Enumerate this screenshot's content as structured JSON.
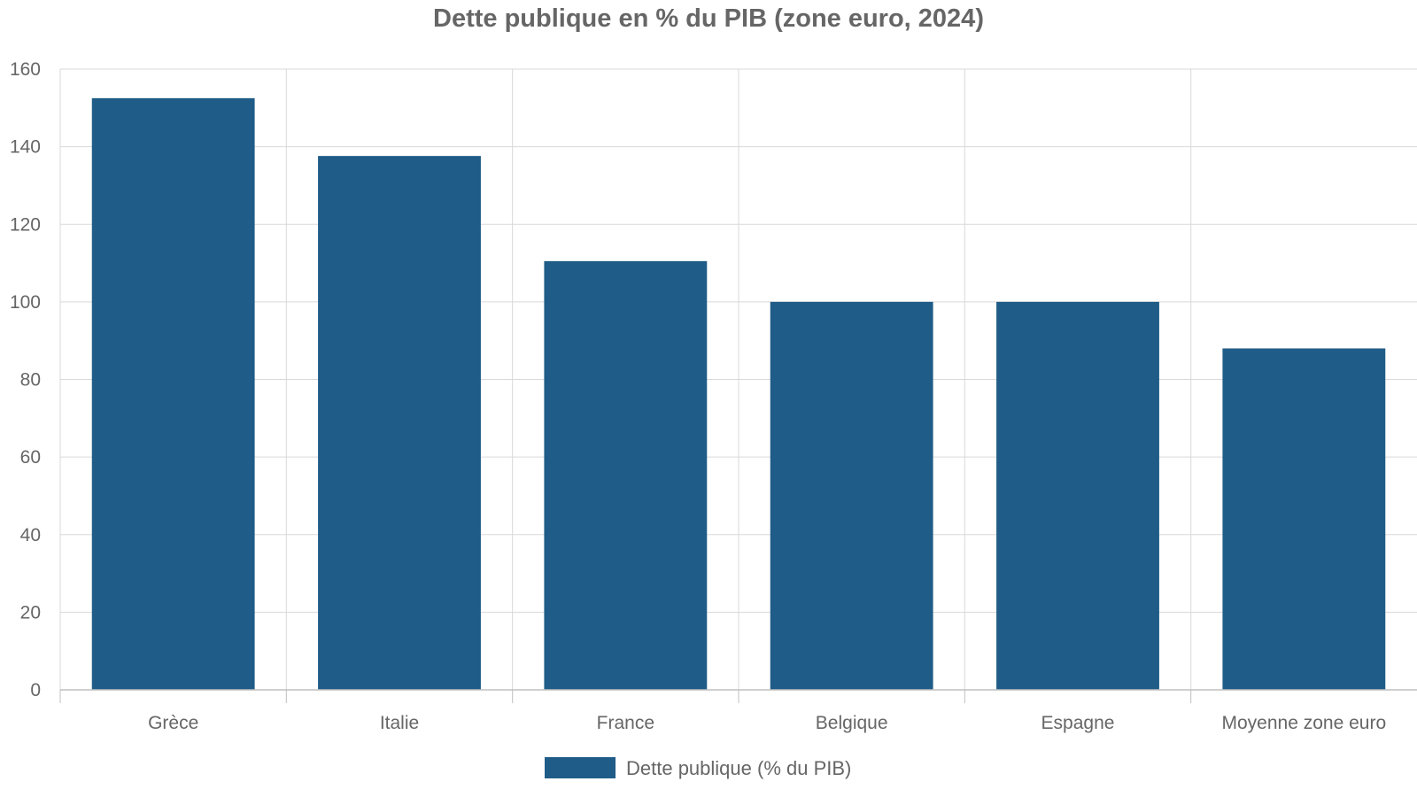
{
  "chart_data": {
    "type": "bar",
    "title": "Dette publique en % du PIB (zone euro, 2024)",
    "xlabel": "",
    "ylabel": "",
    "categories": [
      "Grèce",
      "Italie",
      "France",
      "Belgique",
      "Espagne",
      "Moyenne zone euro"
    ],
    "series": [
      {
        "name": "Dette publique (% du PIB)",
        "values": [
          152.5,
          137.6,
          110.5,
          100.0,
          100.0,
          88.0
        ],
        "color": "#1f5c87"
      }
    ],
    "ylim": [
      0,
      160
    ],
    "yticks": [
      0,
      20,
      40,
      60,
      80,
      100,
      120,
      140,
      160
    ],
    "grid": true,
    "legend_position": "bottom-center"
  },
  "colors": {
    "bar": "#1f5c87",
    "grid": "#d9d9d9",
    "axis": "#bfbfbf",
    "text": "#666666"
  }
}
